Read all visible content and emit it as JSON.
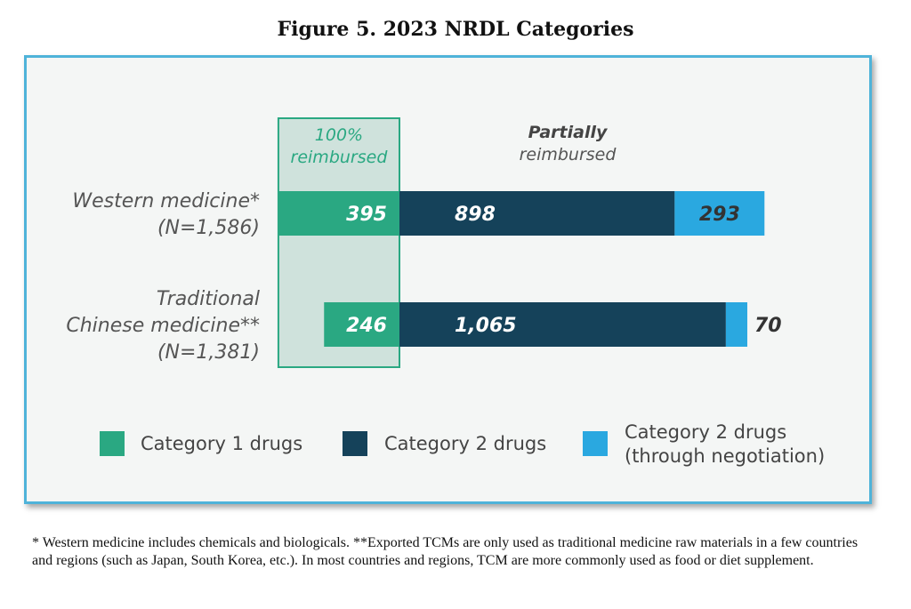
{
  "figure_title": "Figure 5. 2023 NRDL Categories",
  "footnote": "* Western medicine includes chemicals and biologicals. **Exported TCMs are only used as traditional medicine raw materials in a few countries and regions (such as Japan, South Korea, etc.). In most countries and regions, TCM are more commonly used as food or diet supplement.",
  "chart_data": {
    "type": "bar",
    "orientation": "horizontal",
    "stacked": true,
    "categories": [
      [
        "Western medicine*",
        "(N=1,586)"
      ],
      [
        "Traditional",
        "Chinese medicine**",
        "(N=1,381)"
      ]
    ],
    "series": [
      {
        "name": "Category 1 drugs",
        "values": [
          395,
          246
        ],
        "labels": [
          "395",
          "246"
        ],
        "color": "#2aa882"
      },
      {
        "name": "Category 2 drugs",
        "values": [
          898,
          1065
        ],
        "labels": [
          "898",
          "1,065"
        ],
        "color": "#15425a"
      },
      {
        "name": "Category 2 drugs (through negotiation)",
        "legend_lines": [
          "Category 2 drugs",
          "(through negotiation)"
        ],
        "values": [
          293,
          70
        ],
        "labels": [
          "293",
          "70"
        ],
        "color": "#2aa8e0"
      }
    ],
    "group_headers": {
      "full": [
        "100%",
        "reimbursed"
      ],
      "partial": [
        "Partially",
        "reimbursed"
      ]
    },
    "colors": {
      "highlight_fill": "#cfe2dc",
      "highlight_border": "#2aa882",
      "full_header_text": "#2aa882",
      "category_text": "#555555",
      "legend_text": "#444444",
      "light_label_text": "#ffffff",
      "dark_label_text": "#333333"
    }
  }
}
